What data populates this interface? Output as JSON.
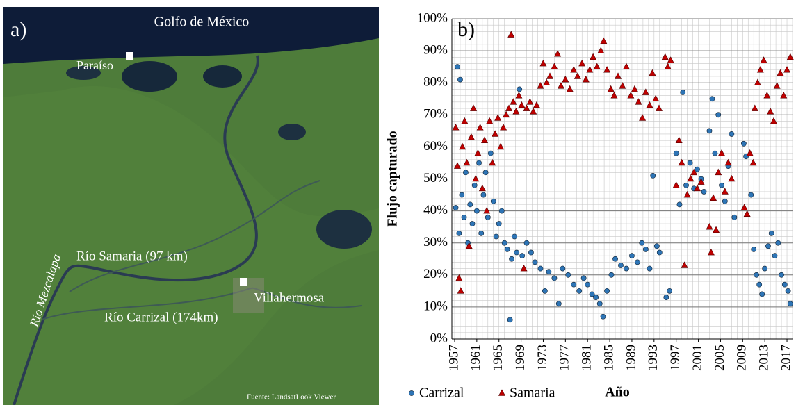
{
  "map": {
    "panel_label": "a)",
    "sea_label": "Golfo de México",
    "labels": [
      "Paraíso",
      "Río Samaria (97 km)",
      "Río Mezcalapa",
      "Río Carrizal (174km)",
      "Villahermosa"
    ],
    "source": "Fuente:  LandsatLook  Viewer"
  },
  "chart_data": {
    "type": "scatter",
    "panel_label": "b)",
    "y_label": "Flujo capturado",
    "x_label": "Año",
    "xlim": [
      1956.5,
      2018
    ],
    "ylim": [
      0,
      100
    ],
    "xticks": [
      1957,
      1961,
      1965,
      1969,
      1973,
      1977,
      1981,
      1985,
      1989,
      1993,
      1997,
      2001,
      2005,
      2009,
      2013,
      2017
    ],
    "yticks": [
      {
        "value": 0,
        "label": "0%"
      },
      {
        "value": 10,
        "label": "10%"
      },
      {
        "value": 20,
        "label": "20%"
      },
      {
        "value": 30,
        "label": "30%"
      },
      {
        "value": 40,
        "label": "40%"
      },
      {
        "value": 50,
        "label": "50%"
      },
      {
        "value": 60,
        "label": "60%"
      },
      {
        "value": 70,
        "label": "70%"
      },
      {
        "value": 80,
        "label": "80%"
      },
      {
        "value": 90,
        "label": "90%"
      },
      {
        "value": 100,
        "label": "100%"
      }
    ],
    "grid": true,
    "minor_grid": {
      "x": 1,
      "y": 2
    },
    "legend": "bottom",
    "series": [
      {
        "name": "Carrizal",
        "color": "#2e75b6",
        "marker": "circle",
        "x": [
          1957.2,
          1957.5,
          1957.8,
          1958.0,
          1958.3,
          1958.7,
          1959.0,
          1959.4,
          1959.8,
          1960.2,
          1960.6,
          1961.0,
          1961.4,
          1961.8,
          1962.2,
          1962.6,
          1963.0,
          1963.5,
          1964.0,
          1964.5,
          1965.0,
          1965.5,
          1966.0,
          1966.5,
          1967.0,
          1967.3,
          1967.8,
          1968.2,
          1968.7,
          1969.2,
          1970.0,
          1970.8,
          1971.5,
          1972.5,
          1973.3,
          1974.0,
          1975.0,
          1975.8,
          1976.5,
          1977.5,
          1978.5,
          1979.5,
          1980.3,
          1981.0,
          1981.8,
          1982.5,
          1983.2,
          1983.8,
          1984.5,
          1985.3,
          1986.0,
          1987.0,
          1988.0,
          1989.0,
          1990.0,
          1990.8,
          1991.5,
          1992.2,
          1992.8,
          1993.5,
          1994.0,
          1995.2,
          1995.8,
          1997.0,
          1997.6,
          1998.2,
          1998.8,
          1999.5,
          2000.2,
          2000.8,
          2001.5,
          2002.0,
          2003.0,
          2003.5,
          2004.0,
          2004.6,
          2005.2,
          2005.8,
          2006.4,
          2007.0,
          2007.5,
          2009.2,
          2009.6,
          2010.5,
          2011.0,
          2011.5,
          2012.0,
          2012.5,
          2013.0,
          2013.6,
          2014.2,
          2014.8,
          2015.4,
          2016.0,
          2016.6,
          2017.2,
          2017.6
        ],
        "values": [
          41,
          85,
          33,
          81,
          45,
          38,
          52,
          30,
          42,
          36,
          48,
          40,
          55,
          33,
          45,
          52,
          38,
          58,
          43,
          32,
          36,
          40,
          30,
          28,
          6,
          25,
          32,
          27,
          78,
          26,
          30,
          27,
          24,
          22,
          15,
          21,
          19,
          11,
          22,
          20,
          17,
          15,
          19,
          17,
          14,
          13,
          11,
          7,
          15,
          20,
          25,
          23,
          22,
          26,
          24,
          30,
          28,
          22,
          51,
          29,
          27,
          13,
          15,
          58,
          42,
          77,
          48,
          55,
          47,
          53,
          50,
          46,
          65,
          75,
          58,
          70,
          48,
          43,
          54,
          64,
          38,
          61,
          57,
          45,
          28,
          20,
          17,
          14,
          22,
          29,
          33,
          26,
          30,
          20,
          17,
          15,
          11
        ]
      },
      {
        "name": "Samaria",
        "color": "#c00000",
        "marker": "triangle",
        "x": [
          1957.2,
          1957.5,
          1957.8,
          1958.1,
          1958.4,
          1958.8,
          1959.2,
          1959.6,
          1960.0,
          1960.4,
          1960.8,
          1961.2,
          1961.6,
          1962.0,
          1962.4,
          1962.8,
          1963.3,
          1963.8,
          1964.3,
          1964.8,
          1965.3,
          1965.8,
          1966.3,
          1966.8,
          1967.2,
          1967.6,
          1968.1,
          1968.6,
          1969.1,
          1969.5,
          1970.0,
          1970.6,
          1971.2,
          1971.8,
          1972.5,
          1973.0,
          1973.6,
          1974.2,
          1975.0,
          1975.6,
          1976.2,
          1977.0,
          1977.8,
          1978.5,
          1979.2,
          1980.0,
          1980.7,
          1981.4,
          1982.0,
          1982.7,
          1983.4,
          1983.9,
          1984.5,
          1985.2,
          1985.8,
          1986.5,
          1987.3,
          1988.0,
          1988.8,
          1989.5,
          1990.2,
          1990.9,
          1991.5,
          1992.2,
          1992.7,
          1993.3,
          1993.9,
          1995.0,
          1995.5,
          1996.0,
          1997.0,
          1997.5,
          1998.0,
          1998.5,
          1999.0,
          1999.6,
          2000.2,
          2000.8,
          2001.5,
          2003.0,
          2003.3,
          2003.7,
          2004.2,
          2004.6,
          2005.2,
          2005.8,
          2006.4,
          2007.0,
          2009.3,
          2009.8,
          2010.3,
          2010.9,
          2011.2,
          2011.7,
          2012.2,
          2012.8,
          2013.4,
          2014.0,
          2014.6,
          2015.2,
          2015.8,
          2016.4,
          2017.0,
          2017.6
        ],
        "values": [
          66,
          54,
          19,
          15,
          60,
          68,
          55,
          29,
          63,
          72,
          50,
          58,
          66,
          47,
          62,
          40,
          68,
          55,
          64,
          69,
          60,
          66,
          70,
          72,
          95,
          74,
          71,
          76,
          73,
          22,
          72,
          74,
          71,
          73,
          79,
          86,
          80,
          82,
          85,
          89,
          79,
          81,
          78,
          84,
          82,
          86,
          81,
          84,
          88,
          85,
          90,
          93,
          84,
          78,
          76,
          82,
          79,
          85,
          76,
          78,
          74,
          69,
          77,
          73,
          83,
          75,
          72,
          88,
          85,
          87,
          48,
          62,
          55,
          23,
          45,
          50,
          52,
          47,
          49,
          35,
          27,
          44,
          34,
          52,
          58,
          46,
          55,
          50,
          41,
          39,
          58,
          55,
          72,
          80,
          84,
          87,
          76,
          71,
          68,
          79,
          83,
          76,
          84,
          88
        ]
      }
    ]
  }
}
